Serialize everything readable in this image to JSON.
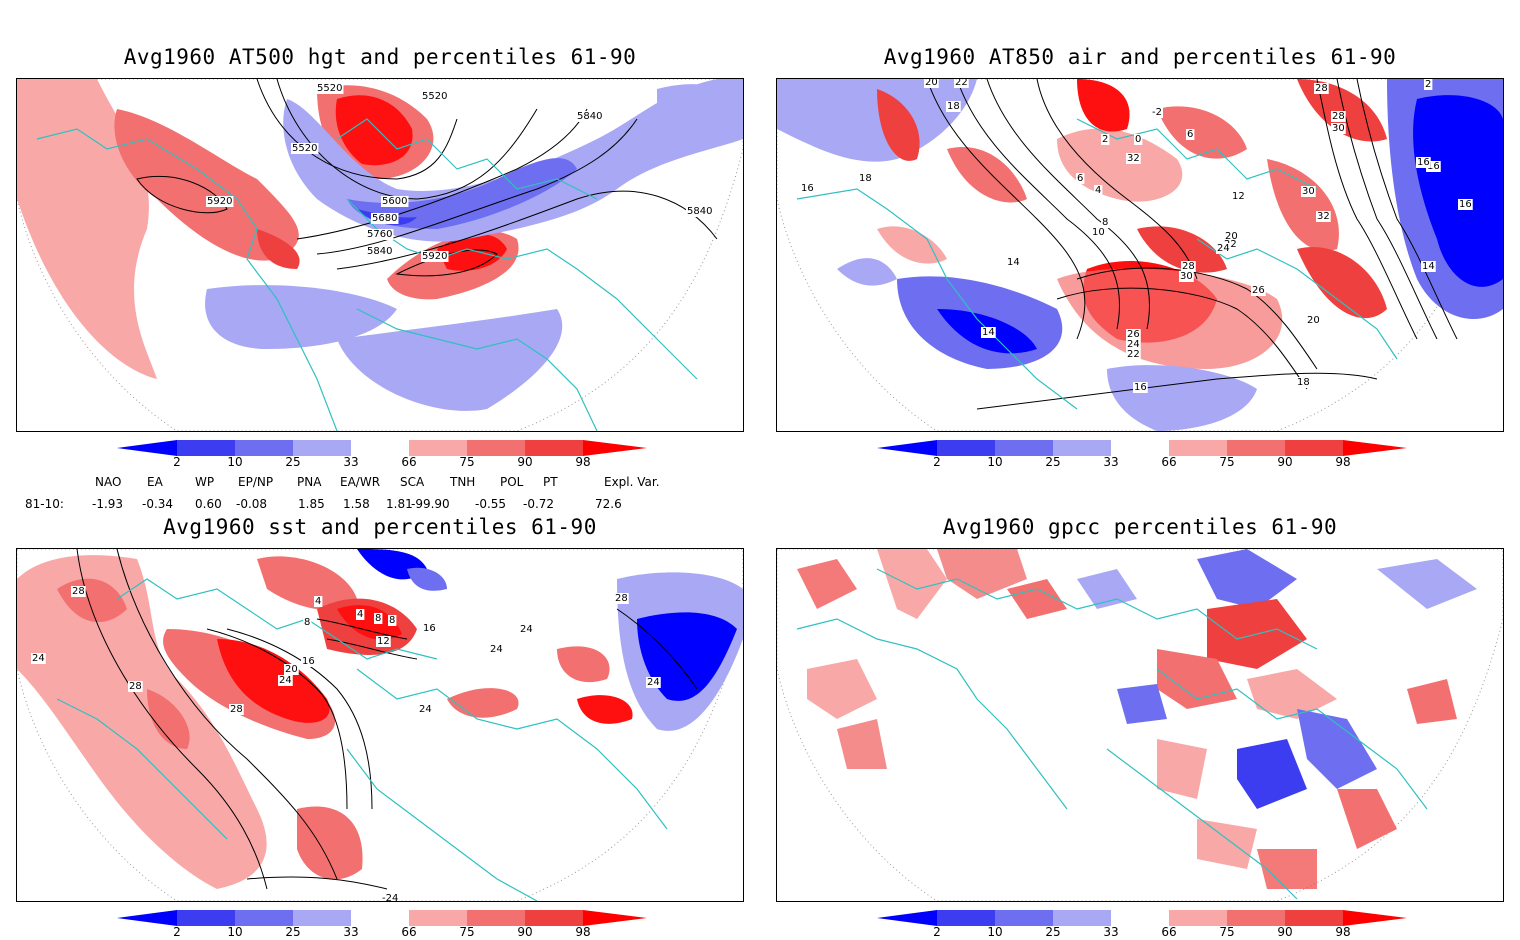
{
  "panels": [
    {
      "title": "Avg1960 AT500 hgt and percentiles 61-90",
      "contour_labels": [
        "5520",
        "5520",
        "5840",
        "5520",
        "5920",
        "5600",
        "5680",
        "5760",
        "5840",
        "5920",
        "5840"
      ]
    },
    {
      "title": "Avg1960 AT850 air and percentiles 61-90",
      "contour_labels": [
        "20",
        "22",
        "18",
        "-2",
        "2",
        "0",
        "6",
        "28",
        "28",
        "30",
        "2",
        "32",
        "16",
        "6",
        "4",
        "18",
        "16",
        "12",
        "8",
        "10",
        "20",
        "22",
        "24",
        "32",
        "30",
        "14",
        "28",
        "30",
        "26",
        "20",
        "14",
        "26",
        "24",
        "22",
        "16",
        "18",
        "16",
        "14",
        "16"
      ]
    },
    {
      "title": "Avg1960 sst and percentiles 61-90",
      "contour_labels": [
        "28",
        "24",
        "28",
        "4",
        "8",
        "8",
        "4",
        "12",
        "8",
        "16",
        "20",
        "24",
        "16",
        "28",
        "24",
        "24",
        "24",
        "28",
        "24",
        "-24"
      ]
    },
    {
      "title": "Avg1960 gpcc percentiles 61-90",
      "contour_labels": []
    }
  ],
  "colorbar": {
    "labels": [
      "2",
      "10",
      "25",
      "33",
      "66",
      "75",
      "90",
      "98"
    ],
    "colors": [
      "#0000ff",
      "#3c3cf0",
      "#6e6ef0",
      "#a8a8f5",
      "#ffffff",
      "#f9a8a8",
      "#f37070",
      "#ef4040",
      "#ff0000"
    ]
  },
  "indices": {
    "names": [
      "NAO",
      "EA",
      "WP",
      "EP/NP",
      "PNA",
      "EA/WR",
      "SCA",
      "TNH",
      "POL",
      "PT",
      "Expl. Var."
    ],
    "row_label": "81-10:",
    "values": [
      "-1.93",
      "-0.34",
      "0.60",
      "-0.08",
      "1.85",
      "1.58",
      "1.81",
      "-99.90",
      "-0.55",
      "-0.72",
      "72.6"
    ]
  }
}
